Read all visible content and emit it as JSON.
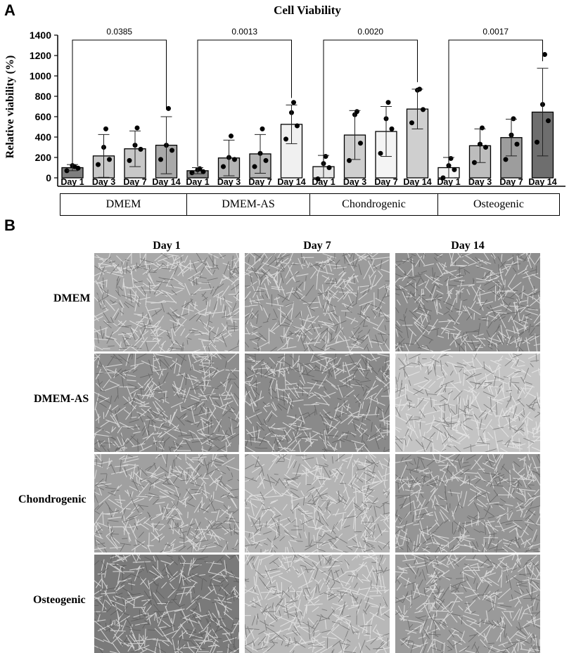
{
  "panels": {
    "a": "A",
    "b": "B"
  },
  "chart_data": {
    "type": "bar",
    "title": "Cell Viability",
    "ylabel": "Relative viability (%)",
    "ylim": [
      0,
      1400
    ],
    "yticks": [
      "0",
      "200",
      "400",
      "600",
      "800",
      "1000",
      "1200",
      "1400"
    ],
    "groups": [
      {
        "name": "DMEM",
        "categories": [
          "Day 1",
          "Day 3",
          "Day 7",
          "Day 14"
        ],
        "values": [
          100,
          215,
          285,
          320
        ],
        "errors": [
          30,
          210,
          175,
          280
        ],
        "points": [
          [
            70,
            95,
            120,
            110
          ],
          [
            130,
            180,
            300,
            480
          ],
          [
            170,
            280,
            320,
            490
          ],
          [
            180,
            270,
            320,
            680
          ]
        ],
        "fills": [
          "#7f7f7f",
          "#c8c8c8",
          "#c8c8c8",
          "#a9a9a9"
        ]
      },
      {
        "name": "DMEM-AS",
        "categories": [
          "Day 1",
          "Day 3",
          "Day 7",
          "Day 14"
        ],
        "values": [
          70,
          195,
          235,
          525
        ],
        "errors": [
          30,
          175,
          190,
          190
        ],
        "points": [
          [
            50,
            60,
            80,
            90
          ],
          [
            110,
            180,
            200,
            410
          ],
          [
            110,
            170,
            240,
            480
          ],
          [
            380,
            510,
            640,
            740
          ]
        ],
        "fills": [
          "#8a8a8a",
          "#b4b4b4",
          "#b4b4b4",
          "#f0f0f0"
        ]
      },
      {
        "name": "Chondrogenic",
        "categories": [
          "Day 1",
          "Day 3",
          "Day 7",
          "Day 14"
        ],
        "values": [
          110,
          420,
          455,
          675
        ],
        "errors": [
          110,
          240,
          245,
          195
        ],
        "points": [
          [
            -10,
            100,
            140,
            210
          ],
          [
            170,
            340,
            620,
            650
          ],
          [
            240,
            480,
            580,
            740
          ],
          [
            540,
            670,
            860,
            870
          ]
        ],
        "fills": [
          "#e6e6e6",
          "#cfcfcf",
          "#f4f4f4",
          "#cfcfcf"
        ]
      },
      {
        "name": "Osteogenic",
        "categories": [
          "Day 1",
          "Day 3",
          "Day 7",
          "Day 14"
        ],
        "values": [
          100,
          315,
          395,
          645
        ],
        "errors": [
          100,
          165,
          180,
          430
        ],
        "points": [
          [
            0,
            80,
            120,
            190
          ],
          [
            150,
            300,
            330,
            490
          ],
          [
            180,
            330,
            420,
            580
          ],
          [
            350,
            560,
            720,
            1210
          ]
        ],
        "fills": [
          "#f4f4f4",
          "#bdbdbd",
          "#9d9d9d",
          "#6e6e6e"
        ]
      }
    ],
    "comparisons": [
      {
        "group": "DMEM",
        "from": "Day 1",
        "to": "Day 14",
        "label": "0.0385"
      },
      {
        "group": "DMEM-AS",
        "from": "Day 1",
        "to": "Day 14",
        "label": "0.0013"
      },
      {
        "group": "Chondrogenic",
        "from": "Day 1",
        "to": "Day 14",
        "label": "0.0020"
      },
      {
        "group": "Osteogenic",
        "from": "Day 1",
        "to": "Day 14",
        "label": "0.0017"
      }
    ],
    "grid": false,
    "legend": "none"
  },
  "micrographs": {
    "columns": [
      "Day 1",
      "Day 7",
      "Day 14"
    ],
    "rows": [
      "DMEM",
      "DMEM-AS",
      "Chondrogenic",
      "Osteogenic"
    ],
    "tones": [
      [
        "#a8a8a8",
        "#9c9c9c",
        "#8e8e8e"
      ],
      [
        "#8d8d8d",
        "#8a8a8a",
        "#c4c4c4"
      ],
      [
        "#a0a0a0",
        "#b4b4b4",
        "#959595"
      ],
      [
        "#7a7a7a",
        "#b8b8b8",
        "#9a9a9a"
      ]
    ]
  }
}
